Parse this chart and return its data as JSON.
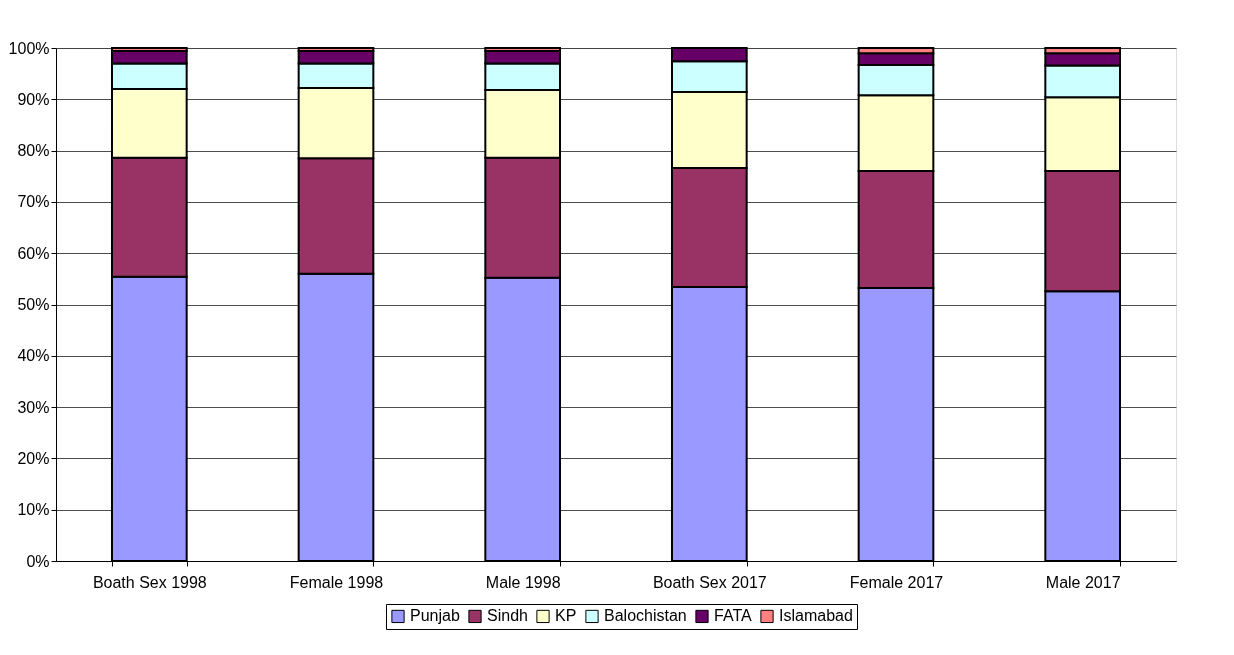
{
  "chart_data": {
    "type": "bar",
    "stacked": true,
    "categories": [
      "Boath Sex 1998",
      "Female 1998",
      "Male 1998",
      "Boath Sex 2017",
      "Female 2017",
      "Male 2017"
    ],
    "series": [
      {
        "name": "Punjab",
        "color": "#9999ff",
        "values": [
          55.4,
          56.0,
          55.2,
          53.4,
          53.2,
          52.6
        ]
      },
      {
        "name": "Sindh",
        "color": "#993366",
        "values": [
          23.2,
          22.5,
          23.4,
          23.2,
          22.8,
          23.4
        ]
      },
      {
        "name": "KP",
        "color": "#ffffcc",
        "values": [
          13.4,
          13.7,
          13.2,
          14.8,
          14.8,
          14.4
        ]
      },
      {
        "name": "Balochistan",
        "color": "#ccffff",
        "values": [
          5.0,
          4.8,
          5.2,
          6.0,
          5.9,
          6.2
        ]
      },
      {
        "name": "FATA",
        "color": "#660066",
        "values": [
          2.4,
          2.4,
          2.4,
          2.6,
          2.3,
          2.4
        ]
      },
      {
        "name": "Islamabad",
        "color": "#ff8080",
        "values": [
          0.6,
          0.6,
          0.6,
          null,
          1.0,
          1.0
        ]
      }
    ],
    "ylim": [
      0,
      100
    ],
    "yticks": [
      {
        "value": 0,
        "label": "0%"
      },
      {
        "value": 10,
        "label": "10%"
      },
      {
        "value": 20,
        "label": "20%"
      },
      {
        "value": 30,
        "label": "30%"
      },
      {
        "value": 40,
        "label": "40%"
      },
      {
        "value": 50,
        "label": "50%"
      },
      {
        "value": 60,
        "label": "60%"
      },
      {
        "value": 70,
        "label": "70%"
      },
      {
        "value": 80,
        "label": "80%"
      },
      {
        "value": 90,
        "label": "90%"
      },
      {
        "value": 100,
        "label": "100%"
      }
    ],
    "grid": "y",
    "legend": "bottom"
  }
}
